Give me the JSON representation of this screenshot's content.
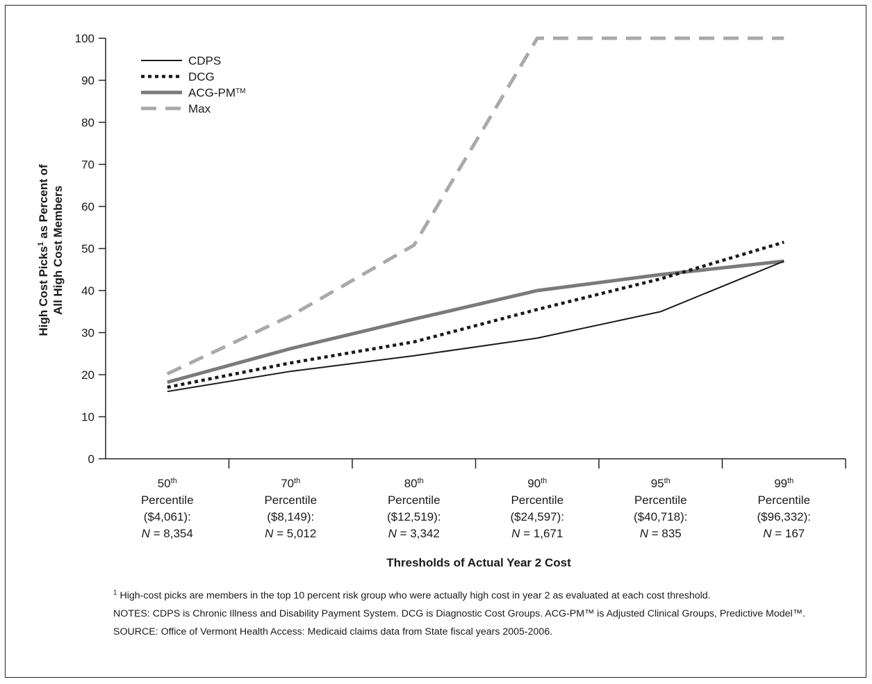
{
  "chart_data": {
    "type": "line",
    "title": "",
    "xlabel": "Thresholds of Actual Year 2 Cost",
    "ylabel_line1_pre": "High Cost Picks",
    "ylabel_line1_sup": "1",
    "ylabel_line1_post": " as Percent of",
    "ylabel_line2": "All High Cost Members",
    "ylim": [
      0,
      100
    ],
    "yticks": [
      "0",
      "10",
      "20",
      "30",
      "40",
      "50",
      "60",
      "70",
      "80",
      "90",
      "100"
    ],
    "categories": [
      {
        "pct": "50",
        "sup": "th",
        "word": "Percentile",
        "cost": "($4,061):",
        "n_italic": "N",
        "n_value": " = 8,354"
      },
      {
        "pct": "70",
        "sup": "th",
        "word": "Percentile",
        "cost": "($8,149):",
        "n_italic": "N",
        "n_value": " = 5,012"
      },
      {
        "pct": "80",
        "sup": "th",
        "word": "Percentile",
        "cost": "($12,519):",
        "n_italic": "N",
        "n_value": " = 3,342"
      },
      {
        "pct": "90",
        "sup": "th",
        "word": "Percentile",
        "cost": "($24,597):",
        "n_italic": "N",
        "n_value": " = 1,671"
      },
      {
        "pct": "95",
        "sup": "th",
        "word": "Percentile",
        "cost": "($40,718):",
        "n_italic": "N",
        "n_value": " = 835"
      },
      {
        "pct": "99",
        "sup": "th",
        "word": "Percentile",
        "cost": "($96,332):",
        "n_italic": "N",
        "n_value": " = 167"
      }
    ],
    "series": [
      {
        "name": "CDPS",
        "name_sup": "",
        "values": [
          16,
          20.8,
          24.5,
          28.7,
          35,
          47
        ],
        "color": "#1a1a1a",
        "style": "solid-thin"
      },
      {
        "name": "DCG",
        "name_sup": "",
        "values": [
          17,
          22.8,
          27.8,
          35.5,
          42.8,
          51.5
        ],
        "color": "#1a1a1a",
        "style": "dotted"
      },
      {
        "name": "ACG-PM",
        "name_sup": "TM",
        "values": [
          18.2,
          26.2,
          33.2,
          40,
          43.8,
          47
        ],
        "color": "#7a7a7a",
        "style": "solid-thick"
      },
      {
        "name": "Max",
        "name_sup": "",
        "values": [
          20.2,
          34,
          50.8,
          100,
          100,
          100
        ],
        "color": "#a9a9a9",
        "style": "dashed"
      }
    ],
    "legend_position": "top-left",
    "grid": false
  },
  "footnotes": {
    "note1_sup": "1",
    "note1": " High-cost picks are members in the top 10 percent risk group who were actually high cost in year 2 as evaluated at each cost threshold.",
    "notes": "NOTES: CDPS is Chronic Illness and Disability Payment System. DCG is Diagnostic Cost Groups. ACG-PM™ is Adjusted Clinical Groups, Predictive Model™.",
    "source": "SOURCE: Office of Vermont Health Access: Medicaid claims data from State fiscal years 2005-2006."
  }
}
